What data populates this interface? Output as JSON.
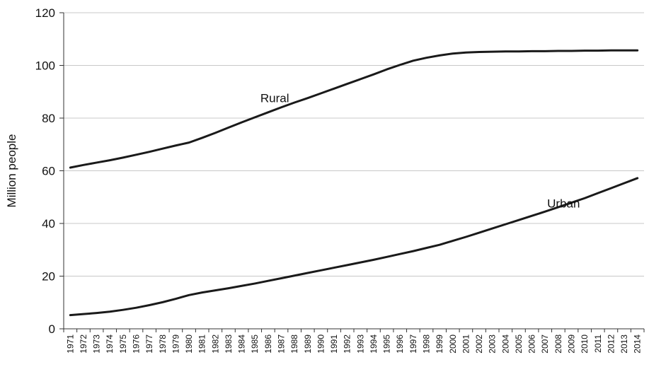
{
  "chart_data": {
    "type": "line",
    "title": "",
    "xlabel": "",
    "ylabel": "Million people",
    "ylim": [
      0,
      120
    ],
    "yticks": [
      0,
      20,
      40,
      60,
      80,
      100,
      120
    ],
    "grid": true,
    "x": [
      1971,
      1972,
      1973,
      1974,
      1975,
      1976,
      1977,
      1978,
      1979,
      1980,
      1981,
      1982,
      1983,
      1984,
      1985,
      1986,
      1987,
      1988,
      1989,
      1990,
      1991,
      1992,
      1993,
      1994,
      1995,
      1996,
      1997,
      1998,
      1999,
      2000,
      2001,
      2002,
      2003,
      2004,
      2005,
      2006,
      2007,
      2008,
      2009,
      2010,
      2011,
      2012,
      2013,
      2014
    ],
    "series": [
      {
        "name": "Rural",
        "values": [
          61.2,
          62.2,
          63.1,
          64.0,
          65.0,
          66.1,
          67.2,
          68.4,
          69.6,
          70.7,
          72.5,
          74.4,
          76.4,
          78.4,
          80.3,
          82.2,
          84.1,
          85.9,
          87.6,
          89.4,
          91.2,
          93.0,
          94.8,
          96.6,
          98.5,
          100.2,
          101.8,
          102.9,
          103.8,
          104.5,
          104.9,
          105.1,
          105.2,
          105.3,
          105.3,
          105.4,
          105.4,
          105.5,
          105.5,
          105.6,
          105.6,
          105.7,
          105.7,
          105.7
        ]
      },
      {
        "name": "Urban",
        "values": [
          5.2,
          5.6,
          6.0,
          6.5,
          7.2,
          8.0,
          9.0,
          10.1,
          11.4,
          12.8,
          13.8,
          14.6,
          15.4,
          16.3,
          17.2,
          18.2,
          19.2,
          20.2,
          21.2,
          22.2,
          23.2,
          24.2,
          25.2,
          26.2,
          27.3,
          28.4,
          29.5,
          30.7,
          31.9,
          33.4,
          34.9,
          36.5,
          38.1,
          39.7,
          41.3,
          42.9,
          44.5,
          46.2,
          47.9,
          49.6,
          51.5,
          53.4,
          55.3,
          57.2
        ]
      }
    ],
    "annotations": [
      {
        "text": "Rural",
        "x": 1986.5,
        "y": 86
      },
      {
        "text": "Urban",
        "x": 2008.4,
        "y": 46
      }
    ]
  }
}
